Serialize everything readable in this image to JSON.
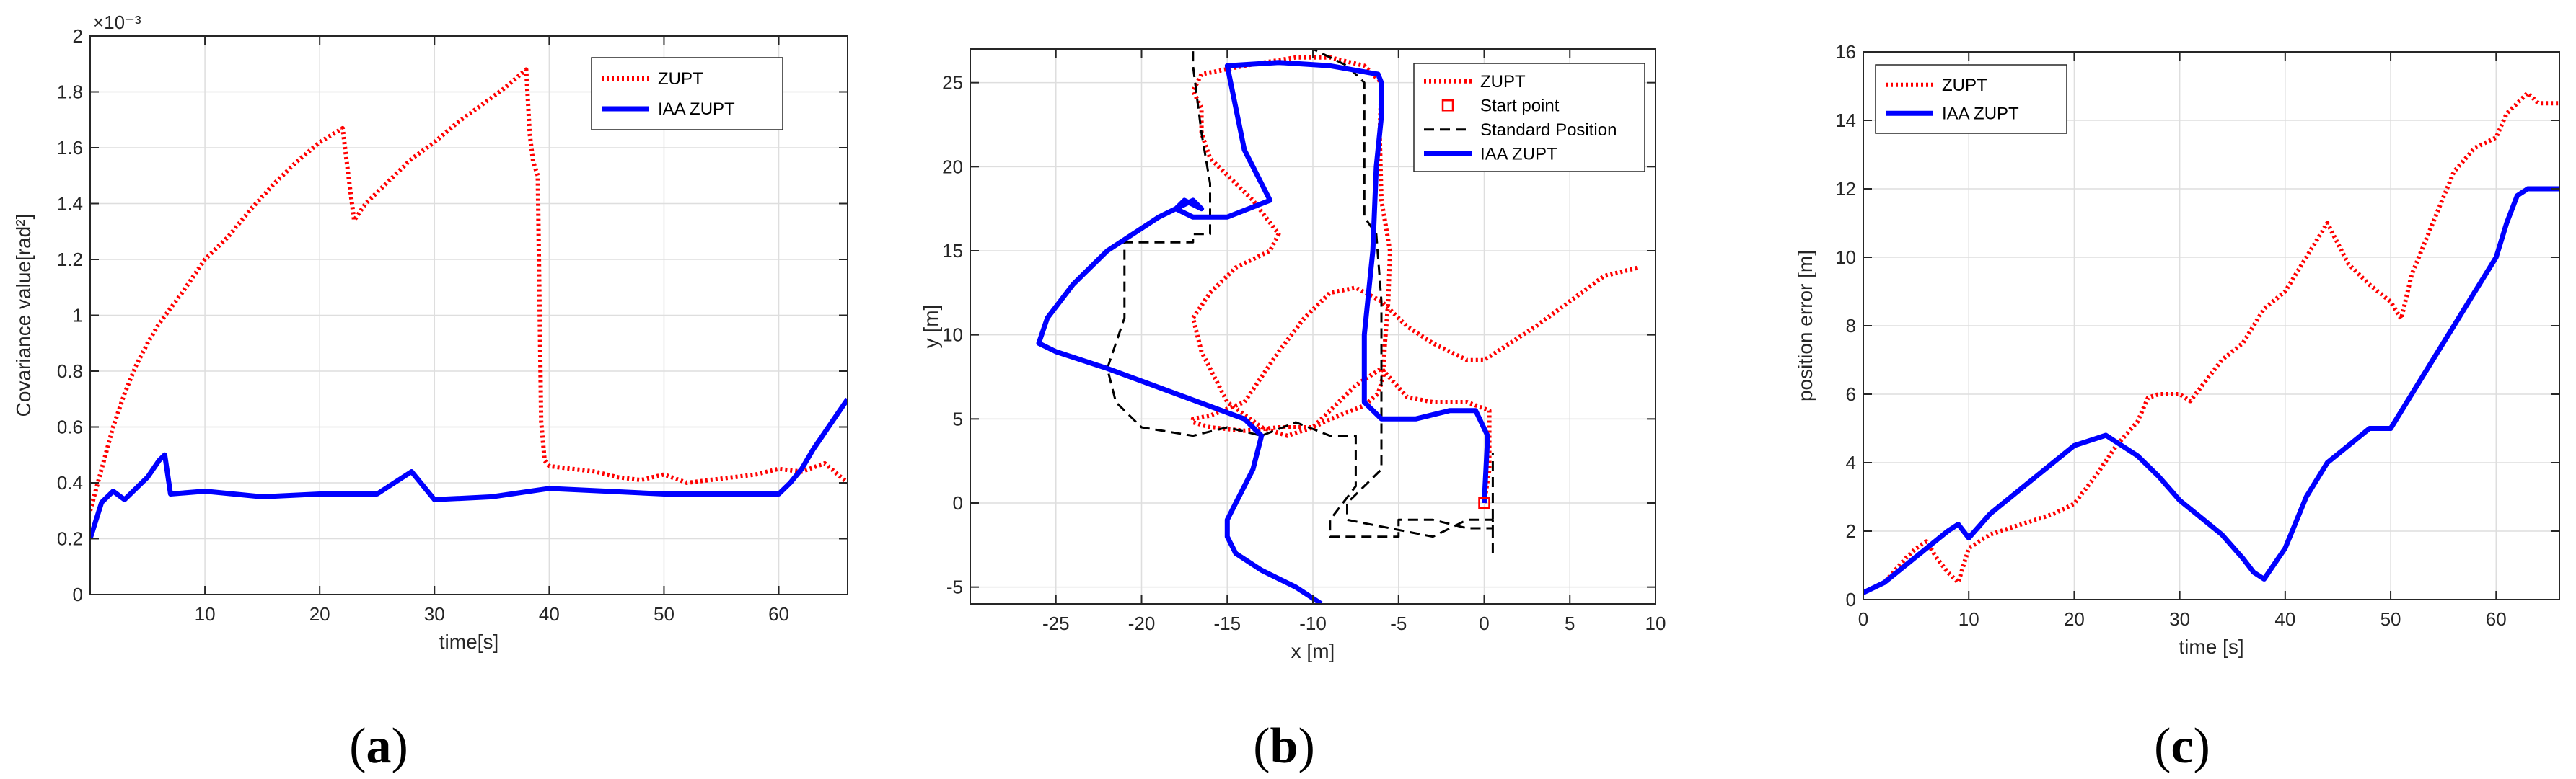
{
  "chart_data": [
    {
      "type": "line",
      "panel_label": "a",
      "xlabel": "time[s]",
      "ylabel": "Covariance value[rad²]",
      "y_multiplier_label": "×10⁻³",
      "xlim": [
        0,
        66
      ],
      "ylim": [
        0,
        2
      ],
      "xticks": [
        10,
        20,
        30,
        40,
        50,
        60
      ],
      "yticks": [
        0,
        0.2,
        0.4,
        0.6,
        0.8,
        1,
        1.2,
        1.4,
        1.6,
        1.8,
        2
      ],
      "grid": true,
      "legend_position": "top-right",
      "series": [
        {
          "name": "ZUPT",
          "color": "#ff0000",
          "style": "dotted",
          "x": [
            0,
            1,
            2,
            3,
            4,
            5,
            6,
            8,
            10,
            12,
            14,
            16,
            18,
            20,
            22,
            22.5,
            23,
            24,
            26,
            28,
            30,
            32,
            34,
            36,
            38,
            38.3,
            38.6,
            39,
            39.3,
            39.6,
            40,
            42,
            44,
            46,
            48,
            50,
            52,
            54,
            56,
            58,
            60,
            62,
            64,
            66
          ],
          "y": [
            0.3,
            0.45,
            0.6,
            0.72,
            0.82,
            0.9,
            0.97,
            1.08,
            1.2,
            1.28,
            1.38,
            1.47,
            1.55,
            1.62,
            1.67,
            1.5,
            1.34,
            1.4,
            1.48,
            1.56,
            1.62,
            1.69,
            1.75,
            1.81,
            1.88,
            1.65,
            1.55,
            1.5,
            0.62,
            0.48,
            0.46,
            0.45,
            0.44,
            0.42,
            0.41,
            0.43,
            0.4,
            0.41,
            0.42,
            0.43,
            0.45,
            0.44,
            0.47,
            0.4
          ]
        },
        {
          "name": "IAA ZUPT",
          "color": "#0000ff",
          "style": "solid",
          "x": [
            0,
            1,
            2,
            3,
            4,
            5,
            6,
            6.5,
            7,
            10,
            15,
            20,
            25,
            28,
            30,
            35,
            40,
            45,
            50,
            55,
            60,
            61,
            62,
            63,
            64,
            65,
            66
          ],
          "y": [
            0.2,
            0.33,
            0.37,
            0.34,
            0.38,
            0.42,
            0.48,
            0.5,
            0.36,
            0.37,
            0.35,
            0.36,
            0.36,
            0.44,
            0.34,
            0.35,
            0.38,
            0.37,
            0.36,
            0.36,
            0.36,
            0.4,
            0.45,
            0.52,
            0.58,
            0.64,
            0.7
          ]
        }
      ]
    },
    {
      "type": "line",
      "panel_label": "b",
      "xlabel": "x [m]",
      "ylabel": "y [m]",
      "xlim": [
        -30,
        10
      ],
      "ylim": [
        -6,
        27
      ],
      "xticks": [
        -25,
        -20,
        -15,
        -10,
        -5,
        0,
        5,
        10
      ],
      "yticks": [
        -5,
        0,
        5,
        10,
        15,
        20,
        25
      ],
      "grid": true,
      "legend_position": "top-right",
      "start_point": {
        "name": "Start point",
        "x": 0,
        "y": 0,
        "color": "#ff0000",
        "marker": "square"
      },
      "series": [
        {
          "name": "ZUPT",
          "color": "#ff0000",
          "style": "dotted",
          "x": [
            0,
            0.3,
            0.3,
            -1,
            -3,
            -4.5,
            -6,
            -7.5,
            -9,
            -10,
            -11.5,
            -13,
            -15,
            -16.5,
            -17,
            -16,
            -14.5,
            -12.5,
            -12,
            -13.5,
            -16,
            -16.5,
            -16.5,
            -17,
            -16.5,
            -14,
            -11,
            -9,
            -7,
            -6,
            -6.1,
            -6,
            -5.5,
            -5.6,
            -5.8,
            -5.9,
            -6.2,
            -7,
            -8.5,
            -10,
            -12,
            -14,
            -16,
            -17,
            -17,
            -16,
            -14,
            -13,
            -12,
            -10.5,
            -9,
            -7.5,
            -6,
            -4.5,
            -3,
            -2,
            -1,
            0,
            1.5,
            3,
            5,
            7,
            9
          ],
          "y": [
            0,
            2,
            5.5,
            6,
            6,
            6.3,
            8,
            7,
            5.5,
            4.5,
            4,
            4.5,
            6,
            9,
            11,
            12.5,
            14,
            15,
            16,
            18,
            20.5,
            22,
            23.5,
            24.5,
            25.5,
            26,
            26.5,
            26.5,
            26,
            25,
            22,
            18,
            15,
            12,
            9.5,
            7.5,
            6.5,
            5.8,
            5.2,
            4.5,
            4.5,
            4.3,
            4.5,
            4.8,
            5,
            5.2,
            6,
            7.5,
            9,
            11,
            12.5,
            12.8,
            12,
            10.5,
            9.5,
            9,
            8.5,
            8.5,
            9.5,
            10.5,
            12,
            13.5,
            14
          ]
        },
        {
          "name": "Standard Position",
          "color": "#000000",
          "style": "dashed",
          "x": [
            0.5,
            0.5,
            -1,
            -3,
            -8,
            -8,
            -6,
            -6,
            -6,
            -6.3,
            -7,
            -7,
            -8,
            -10,
            -15,
            -17,
            -17,
            -16.5,
            -16,
            -16,
            -17,
            -17,
            -21,
            -21,
            -22,
            -21.5,
            -20,
            -17,
            -15,
            -13,
            -11,
            -9,
            -7.5,
            -7.5,
            -9,
            -9,
            -5,
            -5,
            -3,
            -1,
            0.5,
            0.5,
            0.5
          ],
          "y": [
            -3,
            -1,
            -1,
            -2,
            -1,
            0,
            2,
            8,
            12,
            16,
            17,
            25,
            26,
            27,
            27,
            27,
            26,
            22,
            19,
            16,
            16,
            15.5,
            15.5,
            11,
            8,
            6,
            4.5,
            4,
            4.5,
            4,
            4.8,
            4,
            4,
            1,
            -1,
            -2,
            -2,
            -1,
            -1,
            -1.5,
            -1.5,
            0,
            3
          ]
        },
        {
          "name": "IAA ZUPT",
          "color": "#0000ff",
          "style": "solid",
          "x": [
            0,
            0.2,
            -0.5,
            -2,
            -4,
            -6,
            -7,
            -7,
            -6.5,
            -6.3,
            -6,
            -6,
            -6.2,
            -9,
            -12,
            -15,
            -14,
            -12.5,
            -15,
            -16,
            -17,
            -18,
            -17.5,
            -16.5,
            -17,
            -19,
            -22,
            -24,
            -25.5,
            -26,
            -25,
            -22,
            -18,
            -14,
            -13,
            -13.5,
            -14.5,
            -15,
            -15,
            -14.5,
            -13,
            -11,
            -9.5
          ],
          "y": [
            0,
            4,
            5.5,
            5.5,
            5,
            5,
            6,
            10,
            15,
            20,
            23,
            25,
            25.5,
            26,
            26.2,
            26,
            21,
            18,
            17,
            17,
            17,
            17.5,
            18,
            17.5,
            18,
            17,
            15,
            13,
            11,
            9.5,
            9,
            8,
            6.5,
            5,
            4,
            2,
            0,
            -1,
            -2,
            -3,
            -4,
            -5,
            -6
          ]
        }
      ]
    },
    {
      "type": "line",
      "panel_label": "c",
      "xlabel": "time [s]",
      "ylabel": "position error [m]",
      "xlim": [
        0,
        66
      ],
      "ylim": [
        0,
        16
      ],
      "xticks": [
        0,
        10,
        20,
        30,
        40,
        50,
        60
      ],
      "yticks": [
        0,
        2,
        4,
        6,
        8,
        10,
        12,
        14,
        16
      ],
      "grid": true,
      "legend_position": "top-left",
      "series": [
        {
          "name": "ZUPT",
          "color": "#ff0000",
          "style": "dotted",
          "x": [
            0,
            2,
            4,
            5,
            6,
            7,
            8,
            9,
            10,
            12,
            15,
            18,
            20,
            22,
            24,
            26,
            27,
            28,
            30,
            31,
            32,
            34,
            36,
            38,
            40,
            42,
            44,
            46,
            48,
            50,
            51,
            52,
            54,
            56,
            58,
            60,
            61,
            62,
            63,
            64,
            66
          ],
          "y": [
            0.2,
            0.5,
            1.2,
            1.5,
            1.7,
            1.2,
            0.8,
            0.5,
            1.5,
            1.9,
            2.2,
            2.5,
            2.8,
            3.6,
            4.5,
            5.2,
            5.9,
            6,
            6,
            5.8,
            6.2,
            7,
            7.5,
            8.5,
            9,
            10,
            11,
            9.8,
            9.2,
            8.7,
            8.2,
            9.5,
            11,
            12.5,
            13.2,
            13.5,
            14.2,
            14.5,
            14.8,
            14.5,
            14.5
          ]
        },
        {
          "name": "IAA ZUPT",
          "color": "#0000ff",
          "style": "solid",
          "x": [
            0,
            2,
            4,
            6,
            8,
            9,
            10,
            12,
            14,
            16,
            18,
            20,
            22,
            23,
            24,
            26,
            28,
            30,
            32,
            34,
            36,
            37,
            38,
            40,
            42,
            44,
            46,
            48,
            50,
            52,
            54,
            56,
            58,
            60,
            61,
            62,
            63,
            64,
            66
          ],
          "y": [
            0.2,
            0.5,
            1,
            1.5,
            2,
            2.2,
            1.8,
            2.5,
            3,
            3.5,
            4,
            4.5,
            4.7,
            4.8,
            4.6,
            4.2,
            3.6,
            2.9,
            2.4,
            1.9,
            1.2,
            0.8,
            0.6,
            1.5,
            3,
            4,
            4.5,
            5,
            5,
            6,
            7,
            8,
            9,
            10,
            11,
            11.8,
            12,
            12,
            12
          ]
        }
      ]
    }
  ]
}
